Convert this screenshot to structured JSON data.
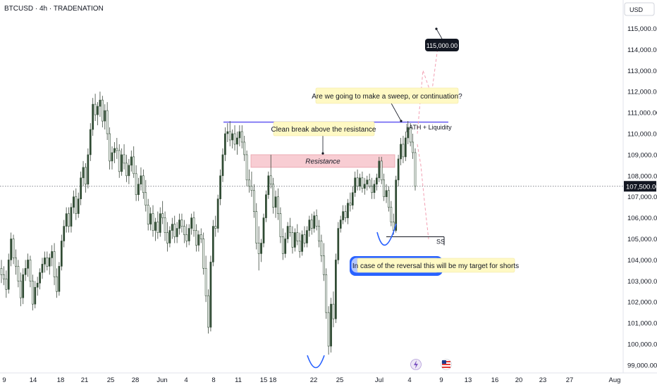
{
  "chart_data": {
    "type": "candlestick",
    "title": "BTCUSD · 4h · TRADENATION",
    "currency": "USD",
    "y_ticks": [
      99000,
      100000,
      101000,
      102000,
      103000,
      104000,
      105000,
      106000,
      107000,
      108000,
      109000,
      110000,
      111000,
      112000,
      113000,
      114000,
      115000
    ],
    "y_tick_labels": [
      "99,000.00",
      "100,000.00",
      "101,000.00",
      "102,000.00",
      "103,000.00",
      "104,000.00",
      "105,000.00",
      "106,000.00",
      "107,000.00",
      "108,000.00",
      "109,000.00",
      "110,000.00",
      "111,000.00",
      "112,000.00",
      "113,000.00",
      "114,000.00",
      "115,000.00"
    ],
    "ylim": [
      98600,
      116600
    ],
    "x_ticks": [
      "9",
      "14",
      "18",
      "21",
      "25",
      "28",
      "Jun",
      "4",
      "8",
      "11",
      "15",
      "18",
      "22",
      "25",
      "Jul",
      "4",
      "9",
      "13",
      "16",
      "20",
      "23",
      "27",
      "Aug"
    ],
    "current_price": 107500,
    "current_price_label": "107,500.00",
    "target_price_label": "115,000.00",
    "resistance_label": "Resistance",
    "resistance_zone": [
      108400,
      109000
    ],
    "ath_level": 110550,
    "ss_level": 105100,
    "annotations": {
      "sweep_question": "Are we going to make a sweep, or continuation?",
      "clean_break": "Clean break above the resistance",
      "ath_liquidity": "ATH + Liquidity",
      "reversal_target": "In case of the reversal this will be my target for shorts",
      "ss": "SS"
    },
    "ohlc": [
      [
        103600,
        104000,
        102900,
        103300
      ],
      [
        103300,
        103700,
        102800,
        103100
      ],
      [
        103100,
        103500,
        102200,
        102600
      ],
      [
        102600,
        104300,
        102400,
        104000
      ],
      [
        104000,
        105300,
        103700,
        105000
      ],
      [
        105000,
        105200,
        103800,
        104100
      ],
      [
        104100,
        104500,
        103300,
        103700
      ],
      [
        103700,
        104000,
        102700,
        103000
      ],
      [
        103000,
        103400,
        101800,
        102200
      ],
      [
        102200,
        103600,
        101900,
        103300
      ],
      [
        103300,
        104000,
        103000,
        103600
      ],
      [
        103600,
        104300,
        103200,
        104000
      ],
      [
        104000,
        104200,
        102700,
        103000
      ],
      [
        103000,
        103300,
        101600,
        101900
      ],
      [
        101900,
        103000,
        101700,
        102700
      ],
      [
        102700,
        103200,
        102300,
        102900
      ],
      [
        102900,
        103600,
        102600,
        103400
      ],
      [
        103400,
        104100,
        103100,
        103800
      ],
      [
        103800,
        104400,
        103400,
        104100
      ],
      [
        104100,
        104400,
        103500,
        103700
      ],
      [
        103700,
        104300,
        103300,
        104100
      ],
      [
        104100,
        104700,
        103700,
        104400
      ],
      [
        104400,
        104800,
        102800,
        103200
      ],
      [
        103200,
        103600,
        102200,
        102500
      ],
      [
        102500,
        103900,
        102300,
        103700
      ],
      [
        103700,
        105200,
        103500,
        104900
      ],
      [
        104900,
        105900,
        104600,
        105600
      ],
      [
        105600,
        106500,
        105300,
        106200
      ],
      [
        106200,
        106500,
        105300,
        105600
      ],
      [
        105600,
        106700,
        105300,
        106500
      ],
      [
        106500,
        107300,
        106200,
        107000
      ],
      [
        107000,
        107400,
        105900,
        106200
      ],
      [
        106200,
        107200,
        106000,
        106900
      ],
      [
        106900,
        108200,
        106600,
        107900
      ],
      [
        107900,
        108700,
        107500,
        108400
      ],
      [
        108400,
        108600,
        107200,
        107600
      ],
      [
        107600,
        109300,
        107400,
        109000
      ],
      [
        109000,
        110500,
        108700,
        110200
      ],
      [
        110200,
        111700,
        109900,
        111400
      ],
      [
        111400,
        111900,
        110600,
        110900
      ],
      [
        110900,
        111500,
        110400,
        111300
      ],
      [
        111300,
        112000,
        110800,
        111600
      ],
      [
        111600,
        111800,
        110300,
        110600
      ],
      [
        110600,
        111400,
        110200,
        111100
      ],
      [
        111100,
        111500,
        109700,
        110000
      ],
      [
        110000,
        110300,
        108300,
        108700
      ],
      [
        108700,
        109400,
        108300,
        109100
      ],
      [
        109100,
        109600,
        108600,
        109300
      ],
      [
        109300,
        109800,
        108800,
        109200
      ],
      [
        109200,
        109500,
        107900,
        108200
      ],
      [
        108200,
        109300,
        108000,
        109000
      ],
      [
        109000,
        109500,
        108300,
        108600
      ],
      [
        108600,
        109000,
        107700,
        108000
      ],
      [
        108000,
        108800,
        107600,
        108500
      ],
      [
        108500,
        109200,
        108200,
        108900
      ],
      [
        108900,
        109400,
        107900,
        108100
      ],
      [
        108100,
        108500,
        106800,
        107100
      ],
      [
        107100,
        107900,
        106800,
        107600
      ],
      [
        107600,
        108400,
        107300,
        108000
      ],
      [
        108000,
        108300,
        106900,
        107200
      ],
      [
        107200,
        107800,
        106300,
        106600
      ],
      [
        106600,
        106900,
        105400,
        105700
      ],
      [
        105700,
        106500,
        105400,
        106200
      ],
      [
        106200,
        106600,
        105100,
        105400
      ],
      [
        105400,
        106000,
        104900,
        105800
      ],
      [
        105800,
        106300,
        105000,
        105300
      ],
      [
        105300,
        106500,
        105100,
        106200
      ],
      [
        106200,
        106800,
        105700,
        106000
      ],
      [
        106000,
        106300,
        104900,
        105300
      ],
      [
        105300,
        105800,
        104400,
        104800
      ],
      [
        104800,
        105600,
        104600,
        105400
      ],
      [
        105400,
        106000,
        105000,
        105700
      ],
      [
        105700,
        106100,
        104800,
        105100
      ],
      [
        105100,
        105800,
        104800,
        105500
      ],
      [
        105500,
        106200,
        105200,
        105900
      ],
      [
        105900,
        106200,
        105300,
        105600
      ],
      [
        105600,
        105900,
        104800,
        105200
      ],
      [
        105200,
        105700,
        104600,
        104900
      ],
      [
        104900,
        105700,
        104700,
        105500
      ],
      [
        105500,
        106200,
        105200,
        106000
      ],
      [
        106000,
        106300,
        105100,
        105400
      ],
      [
        105400,
        105700,
        104400,
        104700
      ],
      [
        104700,
        105400,
        104400,
        105200
      ],
      [
        105200,
        105500,
        104800,
        105000
      ],
      [
        105000,
        105300,
        103300,
        103600
      ],
      [
        103600,
        104200,
        102000,
        102300
      ],
      [
        102300,
        102600,
        100500,
        100800
      ],
      [
        100800,
        104200,
        100600,
        103900
      ],
      [
        103900,
        105900,
        103700,
        105600
      ],
      [
        105600,
        106100,
        105100,
        105500
      ],
      [
        105500,
        107100,
        105300,
        106900
      ],
      [
        106900,
        108300,
        106600,
        108000
      ],
      [
        108000,
        109300,
        107700,
        109000
      ],
      [
        109000,
        110300,
        108700,
        110000
      ],
      [
        110000,
        110500,
        109600,
        110100
      ],
      [
        110100,
        110600,
        109400,
        109700
      ],
      [
        109700,
        110200,
        109300,
        110000
      ],
      [
        110000,
        110400,
        109200,
        109500
      ],
      [
        109500,
        110100,
        109000,
        109800
      ],
      [
        109800,
        110400,
        109400,
        110100
      ],
      [
        110100,
        110400,
        109300,
        109600
      ],
      [
        109600,
        109900,
        108700,
        109000
      ],
      [
        109000,
        109200,
        107500,
        107800
      ],
      [
        107800,
        108300,
        107200,
        107500
      ],
      [
        107500,
        108200,
        107000,
        107300
      ],
      [
        107300,
        107600,
        106000,
        106300
      ],
      [
        106300,
        106700,
        104500,
        104800
      ],
      [
        104800,
        105600,
        103500,
        104300
      ],
      [
        104300,
        105000,
        103900,
        104800
      ],
      [
        104800,
        106200,
        104600,
        106000
      ],
      [
        106000,
        107300,
        105800,
        107100
      ],
      [
        107100,
        108200,
        106900,
        108000
      ],
      [
        108000,
        109000,
        107400,
        107600
      ],
      [
        107600,
        107900,
        106200,
        106500
      ],
      [
        106500,
        107300,
        106000,
        107000
      ],
      [
        107000,
        107400,
        105900,
        106200
      ],
      [
        106200,
        106500,
        104800,
        105100
      ],
      [
        105100,
        105500,
        104000,
        104300
      ],
      [
        104300,
        105300,
        104100,
        105000
      ],
      [
        105000,
        105800,
        104800,
        105600
      ],
      [
        105600,
        106000,
        105100,
        105300
      ],
      [
        105300,
        105600,
        104300,
        104600
      ],
      [
        104600,
        105500,
        104400,
        105300
      ],
      [
        105300,
        105700,
        104700,
        104900
      ],
      [
        104900,
        105300,
        104100,
        104400
      ],
      [
        104400,
        105400,
        104200,
        105200
      ],
      [
        105200,
        105600,
        104600,
        104800
      ],
      [
        104800,
        105600,
        104600,
        105400
      ],
      [
        105400,
        106100,
        105100,
        105900
      ],
      [
        105900,
        106200,
        105200,
        105500
      ],
      [
        105500,
        106300,
        105300,
        106100
      ],
      [
        106100,
        106400,
        105400,
        105600
      ],
      [
        105600,
        105900,
        104600,
        104900
      ],
      [
        104900,
        105200,
        103900,
        104200
      ],
      [
        104200,
        104800,
        103000,
        103300
      ],
      [
        103300,
        103600,
        101200,
        101500
      ],
      [
        101500,
        101800,
        99500,
        99900
      ],
      [
        99900,
        102200,
        99600,
        101900
      ],
      [
        101900,
        102500,
        100800,
        101200
      ],
      [
        101200,
        104300,
        101000,
        104000
      ],
      [
        104000,
        105800,
        103800,
        105500
      ],
      [
        105500,
        106100,
        105300,
        105900
      ],
      [
        105900,
        106600,
        105700,
        106300
      ],
      [
        106300,
        106600,
        105800,
        106000
      ],
      [
        106000,
        106900,
        105700,
        106700
      ],
      [
        106700,
        107200,
        106300,
        106600
      ],
      [
        106600,
        107500,
        106400,
        107200
      ],
      [
        107200,
        108200,
        107000,
        107900
      ],
      [
        107900,
        108300,
        107300,
        107500
      ],
      [
        107500,
        108100,
        107300,
        107900
      ],
      [
        107900,
        108200,
        107200,
        107400
      ],
      [
        107400,
        107900,
        107100,
        107600
      ],
      [
        107600,
        108000,
        107300,
        107800
      ],
      [
        107800,
        108100,
        107400,
        107500
      ],
      [
        107500,
        107900,
        106900,
        107200
      ],
      [
        107200,
        107800,
        106900,
        107600
      ],
      [
        107600,
        108100,
        107300,
        107900
      ],
      [
        107900,
        108900,
        107700,
        108700
      ],
      [
        108700,
        108900,
        107600,
        107800
      ],
      [
        107800,
        108100,
        106800,
        107000
      ],
      [
        107000,
        107600,
        106700,
        107300
      ],
      [
        107300,
        107500,
        106300,
        106500
      ],
      [
        106500,
        106800,
        105600,
        105800
      ],
      [
        105800,
        106200,
        105200,
        105400
      ],
      [
        105400,
        108000,
        105300,
        107800
      ],
      [
        107800,
        109000,
        107500,
        108800
      ],
      [
        108800,
        109800,
        108500,
        109500
      ],
      [
        109500,
        109900,
        108600,
        108900
      ],
      [
        108900,
        110100,
        108700,
        109800
      ],
      [
        109800,
        110600,
        109500,
        110300
      ],
      [
        110300,
        110500,
        109400,
        109600
      ],
      [
        109600,
        110000,
        108800,
        109100
      ],
      [
        109100,
        109300,
        107300,
        107500
      ]
    ]
  }
}
